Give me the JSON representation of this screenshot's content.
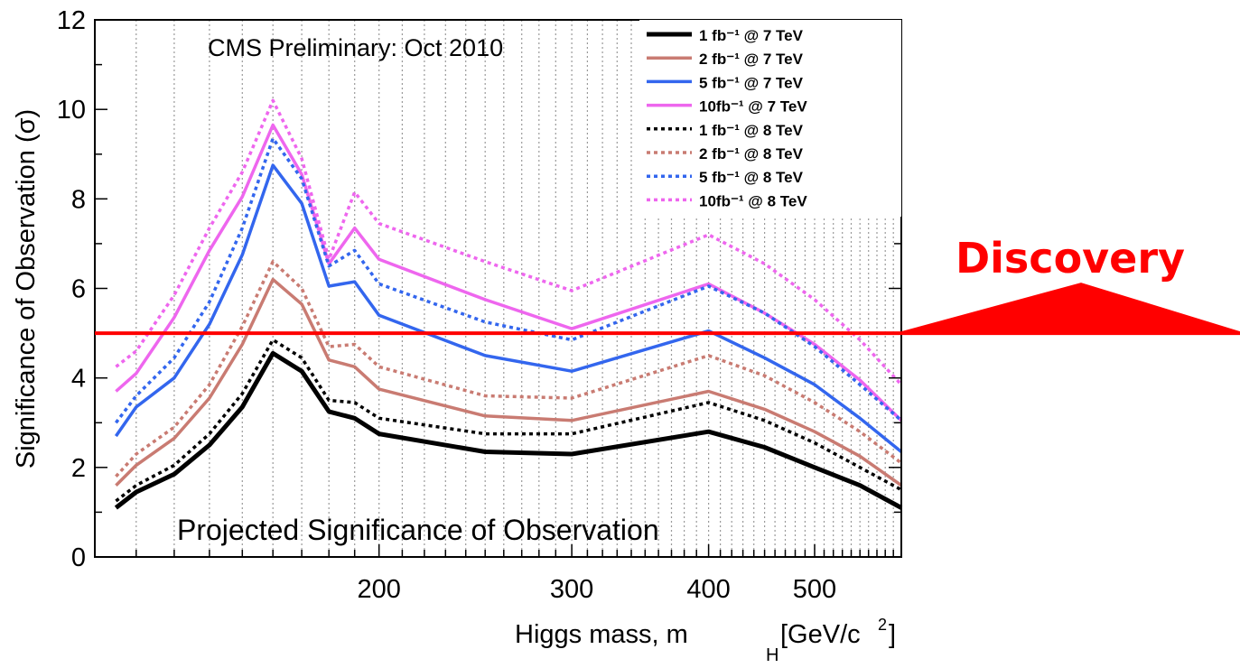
{
  "chart_data": {
    "type": "line",
    "title": "CMS Preliminary: Oct 2010",
    "subtitle": "Projected Significance of Observation",
    "ylabel": "Significance of Observation (σ)",
    "xlabel_main": "Higgs mass, m",
    "xlabel_sub": "H",
    "xlabel_unit": " [GeV/c",
    "xlabel_unit_sup": "2",
    "xlabel_unit_end": "]",
    "xscale": "log",
    "xlim": [
      110,
      600
    ],
    "ylim": [
      0,
      12
    ],
    "grid": "vertical dotted",
    "x_tick_labels": [
      200,
      300,
      400,
      500
    ],
    "y_tick_labels": [
      0,
      2,
      4,
      6,
      8,
      10,
      12
    ],
    "x": [
      115,
      120,
      130,
      140,
      150,
      160,
      170,
      180,
      190,
      200,
      250,
      300,
      400,
      450,
      500,
      550,
      600
    ],
    "series": [
      {
        "name": "1 fb⁻¹ @ 7 TeV",
        "color": "#000000",
        "dash": "solid",
        "values": [
          1.1,
          1.45,
          1.85,
          2.5,
          3.35,
          4.55,
          4.15,
          3.25,
          3.1,
          2.75,
          2.35,
          2.3,
          2.8,
          2.45,
          2.0,
          1.6,
          1.1
        ]
      },
      {
        "name": "2 fb⁻¹ @ 7 TeV",
        "color": "#c97b72",
        "dash": "solid",
        "values": [
          1.6,
          2.05,
          2.65,
          3.55,
          4.75,
          6.2,
          5.65,
          4.4,
          4.25,
          3.75,
          3.15,
          3.05,
          3.7,
          3.3,
          2.8,
          2.25,
          1.6
        ]
      },
      {
        "name": "5 fb⁻¹ @ 7 TeV",
        "color": "#3366ee",
        "dash": "solid",
        "values": [
          2.7,
          3.35,
          4.0,
          5.2,
          6.75,
          8.75,
          7.9,
          6.05,
          6.15,
          5.4,
          4.5,
          4.15,
          5.05,
          4.45,
          3.85,
          3.1,
          2.35
        ]
      },
      {
        "name": "10fb⁻¹ @ 7 TeV",
        "color": "#ee66ee",
        "dash": "solid",
        "values": [
          3.7,
          4.1,
          5.35,
          6.85,
          8.05,
          9.65,
          8.55,
          6.55,
          7.35,
          6.65,
          5.75,
          5.1,
          6.1,
          5.45,
          4.75,
          3.95,
          3.05
        ]
      },
      {
        "name": "1 fb⁻¹ @ 8 TeV",
        "color": "#000000",
        "dash": "dotted",
        "values": [
          1.25,
          1.6,
          2.05,
          2.75,
          3.65,
          4.85,
          4.45,
          3.5,
          3.45,
          3.1,
          2.75,
          2.75,
          3.45,
          3.05,
          2.55,
          2.0,
          1.5
        ]
      },
      {
        "name": "2 fb⁻¹ @ 8 TeV",
        "color": "#c97b72",
        "dash": "dotted",
        "values": [
          1.8,
          2.3,
          2.9,
          3.85,
          5.15,
          6.6,
          6.0,
          4.7,
          4.75,
          4.25,
          3.6,
          3.55,
          4.5,
          4.05,
          3.45,
          2.8,
          2.1
        ]
      },
      {
        "name": "5 fb⁻¹ @ 8 TeV",
        "color": "#3366ee",
        "dash": "dotted",
        "values": [
          3.0,
          3.6,
          4.45,
          5.7,
          7.35,
          9.35,
          8.45,
          6.5,
          6.85,
          6.1,
          5.25,
          4.85,
          6.05,
          5.45,
          4.7,
          3.85,
          3.05
        ]
      },
      {
        "name": "10fb⁻¹ @ 8 TeV",
        "color": "#ee66ee",
        "dash": "dotted",
        "values": [
          4.25,
          4.6,
          5.85,
          7.35,
          8.6,
          10.2,
          8.9,
          6.65,
          8.15,
          7.45,
          6.6,
          5.95,
          7.2,
          6.55,
          5.75,
          4.85,
          3.85
        ]
      }
    ],
    "annotations": [
      {
        "text": "Discovery",
        "y": 5,
        "color": "#ff0000"
      }
    ],
    "legend_position": "top-right"
  }
}
